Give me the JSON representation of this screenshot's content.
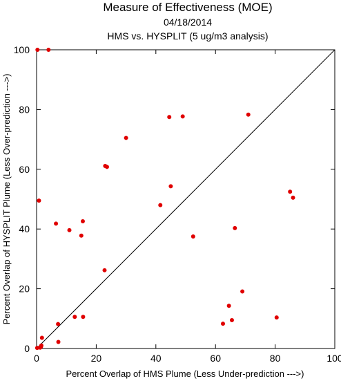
{
  "chart_data": {
    "type": "scatter",
    "title": "Measure of Effectiveness (MOE)",
    "subtitle_date": "04/18/2014",
    "subtitle_analysis": "HMS vs. HYSPLIT  (5 ug/m3 analysis)",
    "xlabel": "Percent Overlap of HMS Plume (Less Under-prediction --->)",
    "ylabel": "Percent Overlap of HYSPLIT Plume (Less Over-prediction --->)",
    "xlim": [
      0,
      100
    ],
    "ylim": [
      0,
      100
    ],
    "x_ticks": [
      "0",
      "20",
      "40",
      "60",
      "80",
      "100"
    ],
    "y_ticks": [
      "0",
      "20",
      "40",
      "60",
      "80",
      "100"
    ],
    "grid": false,
    "reference_line": "y = x",
    "marker_color": "#e00000",
    "points": [
      {
        "x": 0.3,
        "y": 100
      },
      {
        "x": 4,
        "y": 100
      },
      {
        "x": 0.8,
        "y": 49.5
      },
      {
        "x": 0.2,
        "y": 0.2
      },
      {
        "x": 1.2,
        "y": 0.3
      },
      {
        "x": 1.5,
        "y": 0.6
      },
      {
        "x": 1.6,
        "y": 1.0
      },
      {
        "x": 1.8,
        "y": 3.6
      },
      {
        "x": 6.5,
        "y": 41.8
      },
      {
        "x": 7.2,
        "y": 8.2
      },
      {
        "x": 7.3,
        "y": 2.2
      },
      {
        "x": 11,
        "y": 39.6
      },
      {
        "x": 12.8,
        "y": 10.6
      },
      {
        "x": 15,
        "y": 37.8
      },
      {
        "x": 15.5,
        "y": 42.6
      },
      {
        "x": 15.6,
        "y": 10.6
      },
      {
        "x": 22.8,
        "y": 26.2
      },
      {
        "x": 23,
        "y": 61.1
      },
      {
        "x": 23.6,
        "y": 60.8
      },
      {
        "x": 30,
        "y": 70.5
      },
      {
        "x": 41.5,
        "y": 48
      },
      {
        "x": 44.5,
        "y": 77.5
      },
      {
        "x": 45,
        "y": 54.3
      },
      {
        "x": 49,
        "y": 77.7
      },
      {
        "x": 52.5,
        "y": 37.5
      },
      {
        "x": 62.5,
        "y": 8.3
      },
      {
        "x": 64.5,
        "y": 14.3
      },
      {
        "x": 65.5,
        "y": 9.5
      },
      {
        "x": 66.5,
        "y": 40.3
      },
      {
        "x": 69,
        "y": 19.1
      },
      {
        "x": 71,
        "y": 78.3
      },
      {
        "x": 80.5,
        "y": 10.4
      },
      {
        "x": 85,
        "y": 52.5
      },
      {
        "x": 86,
        "y": 50.5
      }
    ]
  }
}
